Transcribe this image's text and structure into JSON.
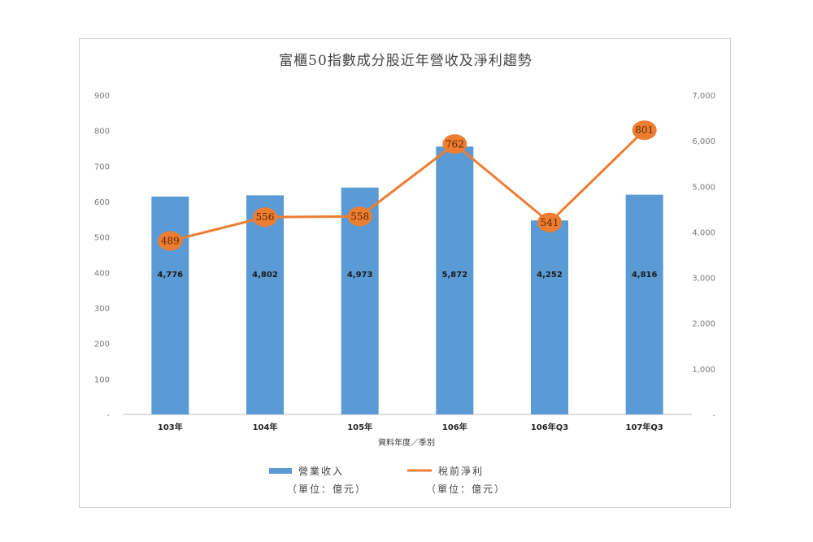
{
  "chart_data": {
    "type": "bar",
    "title": "富櫃50指數成分股近年營收及淨利趨勢",
    "xlabel": "資料年度／季別",
    "categories": [
      "103年",
      "104年",
      "105年",
      "106年",
      "106年Q3",
      "107年Q3"
    ],
    "left_axis": {
      "ticks": [
        0,
        100,
        200,
        300,
        400,
        500,
        600,
        700,
        800,
        900
      ],
      "zero_label": "-",
      "ylim": [
        0,
        900
      ]
    },
    "right_axis": {
      "ticks": [
        0,
        1000,
        2000,
        3000,
        4000,
        5000,
        6000,
        7000
      ],
      "tick_labels": [
        "-",
        "1,000",
        "2,000",
        "3,000",
        "4,000",
        "5,000",
        "6,000",
        "7,000"
      ],
      "ylim": [
        0,
        7000
      ]
    },
    "series": [
      {
        "name": "營業收入",
        "unit": "（單位：億元）",
        "kind": "bar",
        "axis": "right",
        "color": "#5b9bd5",
        "values": [
          4776,
          4802,
          4973,
          5872,
          4252,
          4816
        ],
        "labels": [
          "4,776",
          "4,802",
          "4,973",
          "5,872",
          "4,252",
          "4,816"
        ]
      },
      {
        "name": "稅前淨利",
        "unit": "（單位：億元）",
        "kind": "line",
        "axis": "left",
        "color": "#ed7d31",
        "values": [
          489,
          556,
          558,
          762,
          541,
          801
        ],
        "labels": [
          "489",
          "556",
          "558",
          "762",
          "541",
          "801"
        ]
      }
    ],
    "grid": false,
    "legend_position": "bottom"
  }
}
